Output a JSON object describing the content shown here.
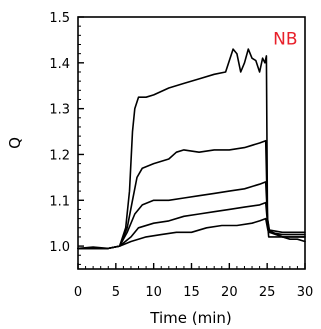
{
  "chart_data": {
    "type": "line",
    "title": "",
    "xlabel": "Time (min)",
    "ylabel": "Q",
    "xlim": [
      0,
      30
    ],
    "ylim": [
      0.95,
      1.5
    ],
    "x_ticks": [
      0,
      5,
      10,
      15,
      20,
      25,
      30
    ],
    "y_ticks": [
      1.0,
      1.1,
      1.2,
      1.3,
      1.4,
      1.5
    ],
    "grid": false,
    "legend": "none",
    "annotations": [
      {
        "text": "NB",
        "x": 27.4,
        "y": 1.44,
        "color": "#e8202a"
      }
    ],
    "series": [
      {
        "x": [
          0,
          2,
          4,
          5.5,
          6.3,
          6.8,
          7.2,
          7.5,
          8,
          9,
          10,
          12,
          14,
          16,
          18,
          19.5,
          20.5,
          21,
          21.5,
          22,
          22.5,
          23,
          23.5,
          24,
          24.4,
          24.7,
          24.9,
          25.05,
          25.2,
          26,
          27,
          28,
          29,
          30
        ],
        "y": [
          0.995,
          0.998,
          0.995,
          1.0,
          1.04,
          1.12,
          1.25,
          1.3,
          1.325,
          1.325,
          1.33,
          1.345,
          1.355,
          1.365,
          1.375,
          1.38,
          1.43,
          1.42,
          1.38,
          1.4,
          1.43,
          1.41,
          1.405,
          1.38,
          1.41,
          1.4,
          1.415,
          1.05,
          1.02,
          1.02,
          1.02,
          1.015,
          1.015,
          1.01
        ]
      },
      {
        "x": [
          0,
          2,
          4,
          5.5,
          6.5,
          7.2,
          7.8,
          8.5,
          10,
          12,
          13,
          14,
          16,
          18,
          20,
          22,
          23,
          24,
          24.8,
          25.05,
          25.3,
          27,
          30
        ],
        "y": [
          0.995,
          0.995,
          0.995,
          1.0,
          1.04,
          1.1,
          1.15,
          1.17,
          1.18,
          1.19,
          1.205,
          1.21,
          1.205,
          1.21,
          1.21,
          1.215,
          1.22,
          1.225,
          1.23,
          1.06,
          1.03,
          1.02,
          1.02
        ]
      },
      {
        "x": [
          0,
          2,
          4,
          5.5,
          6.5,
          7.5,
          8.5,
          10,
          12,
          14,
          16,
          18,
          20,
          22,
          23,
          24,
          24.8,
          25.05,
          25.3,
          27,
          30
        ],
        "y": [
          0.995,
          0.995,
          0.995,
          1.0,
          1.03,
          1.07,
          1.09,
          1.1,
          1.1,
          1.105,
          1.11,
          1.115,
          1.12,
          1.125,
          1.13,
          1.135,
          1.14,
          1.06,
          1.035,
          1.03,
          1.03
        ]
      },
      {
        "x": [
          0,
          2,
          4,
          5.5,
          7,
          8,
          10,
          12,
          14,
          16,
          18,
          20,
          22,
          24,
          24.8,
          25.05,
          25.3,
          27,
          30
        ],
        "y": [
          0.995,
          0.995,
          0.995,
          1.0,
          1.02,
          1.04,
          1.05,
          1.055,
          1.065,
          1.07,
          1.075,
          1.08,
          1.085,
          1.09,
          1.095,
          1.05,
          1.03,
          1.025,
          1.025
        ]
      },
      {
        "x": [
          0,
          2,
          4,
          5.5,
          7,
          9,
          11,
          13,
          15,
          17,
          19,
          21,
          23,
          24,
          24.8,
          25.1,
          27,
          30
        ],
        "y": [
          0.995,
          0.995,
          0.995,
          1.0,
          1.01,
          1.02,
          1.025,
          1.03,
          1.03,
          1.04,
          1.045,
          1.045,
          1.05,
          1.055,
          1.06,
          1.035,
          1.02,
          1.02
        ]
      }
    ]
  }
}
